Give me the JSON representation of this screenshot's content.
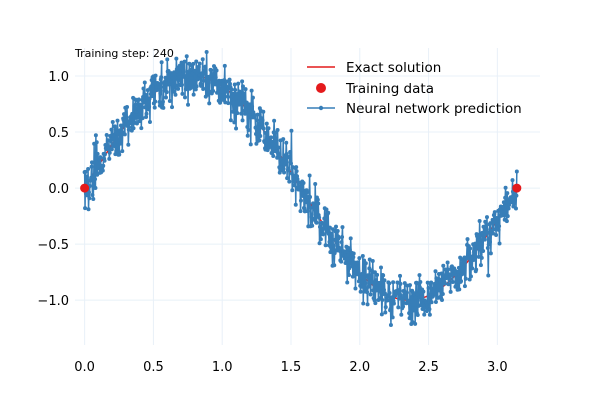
{
  "annotation": "Training step: 240",
  "legend": {
    "placement": "top-right",
    "entries": [
      {
        "label": "Exact solution",
        "kind": "line",
        "color": "#e41a1c"
      },
      {
        "label": "Training data",
        "kind": "marker",
        "color": "#e41a1c"
      },
      {
        "label": "Neural network prediction",
        "kind": "line-marker",
        "color": "#377eb8"
      }
    ]
  },
  "colors": {
    "exact": "#e41a1c",
    "training": "#e41a1c",
    "prediction": "#377eb8",
    "grid": "#e8f0f8"
  },
  "chart_data": {
    "type": "line",
    "title": "",
    "xlabel": "",
    "ylabel": "",
    "xlim": [
      -0.07,
      3.31
    ],
    "ylim": [
      -1.4,
      1.25
    ],
    "grid": true,
    "xticks": [
      0.0,
      0.5,
      1.0,
      1.5,
      2.0,
      2.5,
      3.0
    ],
    "xtick_labels": [
      "0.0",
      "0.5",
      "1.0",
      "1.5",
      "2.0",
      "2.5",
      "3.0"
    ],
    "yticks": [
      -1.0,
      -0.5,
      0.0,
      0.5,
      1.0
    ],
    "ytick_labels": [
      "−1.0",
      "−0.5",
      "0.0",
      "0.5",
      "1.0"
    ],
    "series": [
      {
        "name": "Exact solution",
        "kind": "line",
        "x_range": [
          0.0,
          3.1416
        ],
        "formula": "sin(2x)",
        "samples": 200
      },
      {
        "name": "Training data",
        "kind": "scatter",
        "x": [
          0.0,
          3.1416
        ],
        "y": [
          0.0,
          0.0
        ]
      },
      {
        "name": "Neural network prediction",
        "kind": "line-marker",
        "x_range": [
          0.0,
          3.1416
        ],
        "n_points": 1000,
        "follows": "sin(2x)",
        "noise_std": 0.1
      }
    ]
  }
}
